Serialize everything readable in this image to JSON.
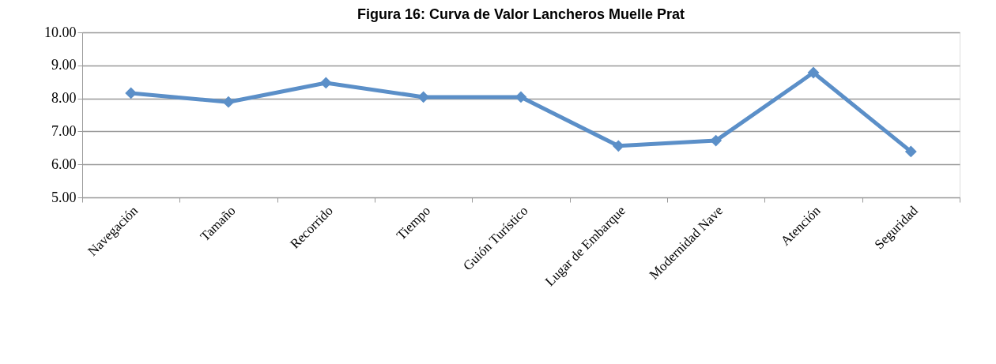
{
  "chart_data": {
    "type": "line",
    "title": "Figura 16: Curva de Valor Lancheros Muelle Prat",
    "categories": [
      "Navegación",
      "Tamaño",
      "Recorrido",
      "Tiempo",
      "Guión Turístico",
      "Lugar de Embarque",
      "Modernidad Nave",
      "Atención",
      "Seguridad"
    ],
    "series": [
      {
        "color": "#5b8fc8",
        "values": [
          8.16,
          7.89,
          8.47,
          8.04,
          8.04,
          6.56,
          6.72,
          8.78,
          6.39
        ]
      }
    ],
    "ylim": [
      5,
      10
    ],
    "yticks": [
      {
        "value": 5,
        "label": "5.00"
      },
      {
        "value": 6,
        "label": "6.00"
      },
      {
        "value": 7,
        "label": "7.00"
      },
      {
        "value": 8,
        "label": "8.00"
      },
      {
        "value": 9,
        "label": "9.00"
      },
      {
        "value": 10,
        "label": "10.00"
      }
    ],
    "grid": "y",
    "marker": "diamond",
    "line_style": "solid"
  }
}
